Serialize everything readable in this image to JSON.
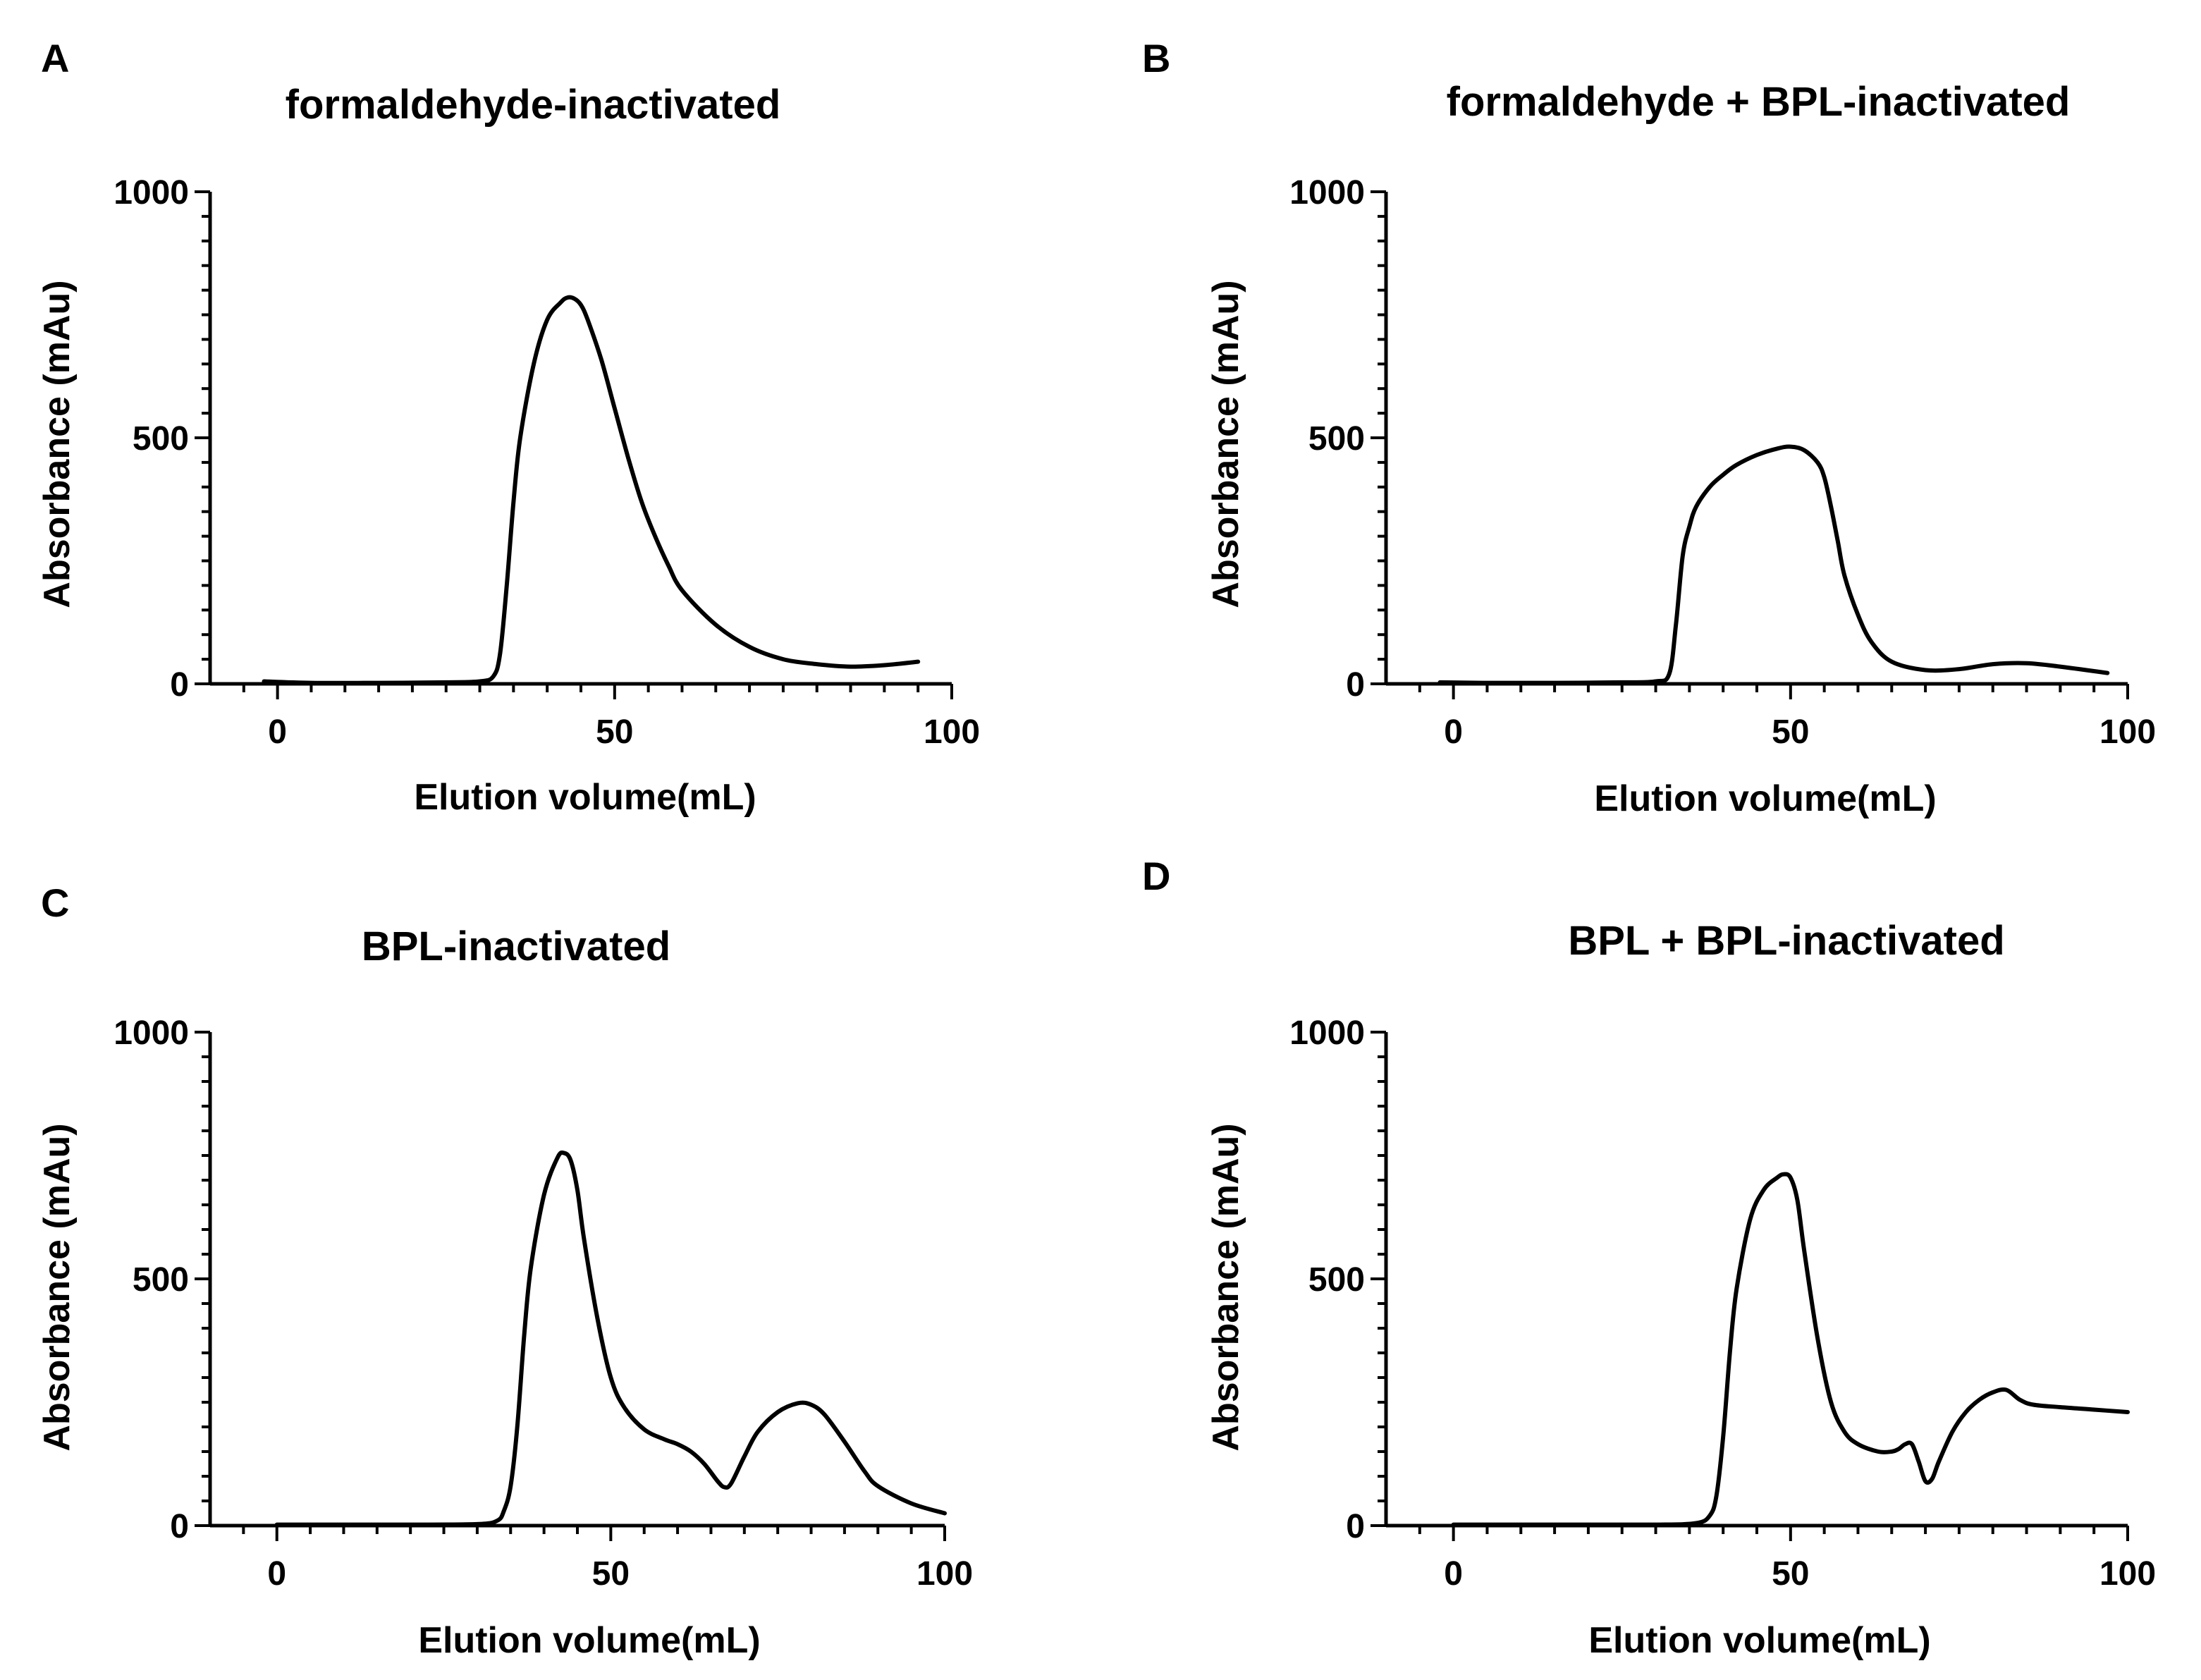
{
  "chart_data": [
    {
      "panel": "A",
      "type": "line",
      "title": "formaldehyde-inactivated",
      "xlabel": "Elution volume(mL)",
      "ylabel": "Absorbance (mAu)",
      "xlim": [
        -10,
        100
      ],
      "ylim": [
        0,
        1000
      ],
      "xticks": [
        0,
        50,
        100
      ],
      "yticks": [
        0,
        500,
        1000
      ],
      "series": [
        {
          "name": "formaldehyde-inactivated",
          "x": [
            -2,
            5,
            15,
            25,
            30,
            32,
            33,
            34,
            35,
            36,
            38,
            40,
            42,
            43,
            44,
            45,
            46,
            48,
            50,
            52,
            54,
            56,
            58,
            60,
            65,
            70,
            75,
            80,
            85,
            90,
            95
          ],
          "y": [
            5,
            2,
            2,
            3,
            5,
            15,
            60,
            200,
            370,
            500,
            650,
            740,
            775,
            785,
            783,
            770,
            740,
            660,
            560,
            460,
            370,
            300,
            240,
            190,
            120,
            75,
            50,
            40,
            35,
            38,
            45
          ]
        }
      ]
    },
    {
      "panel": "B",
      "type": "line",
      "title": "formaldehyde + BPL-inactivated",
      "xlabel": "Elution volume(mL)",
      "ylabel": "Absorbance (mAu)",
      "xlim": [
        -10,
        100
      ],
      "ylim": [
        0,
        1000
      ],
      "xticks": [
        0,
        50,
        100
      ],
      "yticks": [
        0,
        500,
        1000
      ],
      "series": [
        {
          "name": "formaldehyde + BPL-inactivated",
          "x": [
            -2,
            5,
            15,
            25,
            30,
            32,
            33,
            34,
            35,
            36,
            38,
            40,
            42,
            45,
            48,
            50,
            52,
            54,
            55,
            56,
            57,
            58,
            60,
            62,
            65,
            70,
            75,
            80,
            85,
            90,
            97
          ],
          "y": [
            3,
            2,
            2,
            3,
            5,
            20,
            120,
            260,
            320,
            360,
            400,
            425,
            445,
            465,
            478,
            482,
            475,
            450,
            420,
            360,
            290,
            220,
            140,
            85,
            45,
            28,
            30,
            40,
            42,
            35,
            22
          ]
        }
      ]
    },
    {
      "panel": "C",
      "type": "line",
      "title": "BPL-inactivated",
      "xlabel": "Elution volume(mL)",
      "ylabel": "Absorbance (mAu)",
      "xlim": [
        -10,
        100
      ],
      "ylim": [
        0,
        1000
      ],
      "xticks": [
        0,
        50,
        100
      ],
      "yticks": [
        0,
        500,
        1000
      ],
      "series": [
        {
          "name": "BPL-inactivated",
          "x": [
            0,
            10,
            20,
            30,
            33,
            34,
            35,
            36,
            37,
            38,
            40,
            42,
            43,
            44,
            45,
            46,
            48,
            50,
            52,
            55,
            58,
            60,
            62,
            64,
            66,
            67,
            68,
            70,
            72,
            75,
            78,
            80,
            82,
            85,
            88,
            90,
            95,
            100
          ],
          "y": [
            2,
            2,
            2,
            3,
            10,
            30,
            80,
            200,
            380,
            520,
            670,
            745,
            755,
            740,
            680,
            580,
            420,
            300,
            240,
            195,
            175,
            165,
            150,
            125,
            90,
            78,
            85,
            140,
            190,
            230,
            248,
            245,
            225,
            170,
            110,
            80,
            45,
            25
          ]
        }
      ]
    },
    {
      "panel": "D",
      "type": "line",
      "title": "BPL + BPL-inactivated",
      "xlabel": "Elution volume(mL)",
      "ylabel": "Absorbance (mAu)",
      "xlim": [
        -10,
        100
      ],
      "ylim": [
        0,
        1000
      ],
      "xticks": [
        0,
        50,
        100
      ],
      "yticks": [
        0,
        500,
        1000
      ],
      "series": [
        {
          "name": "BPL + BPL-inactivated",
          "x": [
            0,
            10,
            20,
            30,
            36,
            38,
            39,
            40,
            41,
            42,
            44,
            46,
            48,
            49,
            50,
            51,
            52,
            54,
            56,
            58,
            60,
            63,
            65,
            66,
            67,
            68,
            69,
            70,
            71,
            72,
            74,
            76,
            78,
            80,
            82,
            84,
            86,
            90,
            95,
            100
          ],
          "y": [
            2,
            2,
            2,
            2,
            5,
            20,
            60,
            180,
            350,
            480,
            620,
            680,
            705,
            712,
            705,
            660,
            560,
            380,
            250,
            190,
            165,
            150,
            150,
            155,
            165,
            165,
            130,
            90,
            95,
            130,
            190,
            230,
            255,
            270,
            275,
            255,
            245,
            240,
            235,
            230
          ]
        }
      ]
    }
  ]
}
